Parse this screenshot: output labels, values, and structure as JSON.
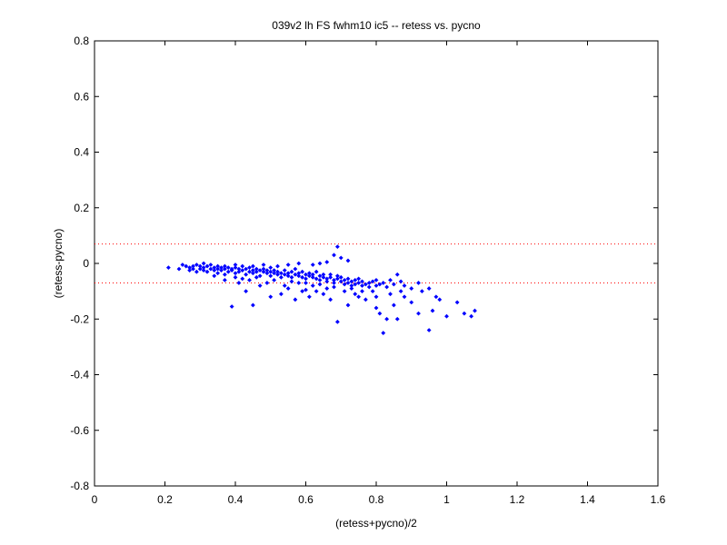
{
  "chart_data": {
    "type": "scatter",
    "title": "039v2 lh FS fwhm10 ic5 -- retess vs. pycno",
    "xlabel": "(retess+pycno)/2",
    "ylabel": "(retess-pycno)",
    "xlim": [
      0,
      1.6
    ],
    "ylim": [
      -0.8,
      0.8
    ],
    "xticks": [
      "0",
      "0.2",
      "0.4",
      "0.6",
      "0.8",
      "1",
      "1.2",
      "1.4",
      "1.6"
    ],
    "yticks": [
      "-0.8",
      "-0.6",
      "-0.4",
      "-0.2",
      "0",
      "0.2",
      "0.4",
      "0.6",
      "0.8"
    ],
    "grid": false,
    "marker_color": "#0000ff",
    "reference_line_color": "#ff0000",
    "reference_lines_y": [
      0.07,
      -0.07
    ],
    "points": [
      [
        0.21,
        -0.015
      ],
      [
        0.24,
        -0.02
      ],
      [
        0.25,
        -0.005
      ],
      [
        0.26,
        -0.01
      ],
      [
        0.27,
        -0.025
      ],
      [
        0.27,
        -0.015
      ],
      [
        0.28,
        -0.02
      ],
      [
        0.28,
        -0.01
      ],
      [
        0.29,
        -0.005
      ],
      [
        0.29,
        -0.03
      ],
      [
        0.3,
        -0.01
      ],
      [
        0.3,
        -0.02
      ],
      [
        0.31,
        -0.015
      ],
      [
        0.31,
        -0.025
      ],
      [
        0.31,
        0.0
      ],
      [
        0.32,
        -0.01
      ],
      [
        0.32,
        -0.03
      ],
      [
        0.33,
        -0.02
      ],
      [
        0.33,
        -0.005
      ],
      [
        0.34,
        -0.015
      ],
      [
        0.34,
        -0.025
      ],
      [
        0.35,
        -0.01
      ],
      [
        0.35,
        -0.02
      ],
      [
        0.35,
        -0.035
      ],
      [
        0.36,
        -0.015
      ],
      [
        0.36,
        -0.025
      ],
      [
        0.37,
        -0.02
      ],
      [
        0.37,
        -0.01
      ],
      [
        0.37,
        -0.04
      ],
      [
        0.38,
        -0.015
      ],
      [
        0.38,
        -0.03
      ],
      [
        0.39,
        -0.02
      ],
      [
        0.39,
        -0.025
      ],
      [
        0.4,
        -0.015
      ],
      [
        0.4,
        -0.035
      ],
      [
        0.4,
        -0.005
      ],
      [
        0.41,
        -0.02
      ],
      [
        0.41,
        -0.03
      ],
      [
        0.42,
        -0.025
      ],
      [
        0.42,
        -0.01
      ],
      [
        0.43,
        -0.02
      ],
      [
        0.43,
        -0.04
      ],
      [
        0.44,
        -0.03
      ],
      [
        0.44,
        -0.015
      ],
      [
        0.45,
        -0.025
      ],
      [
        0.45,
        -0.035
      ],
      [
        0.46,
        -0.02
      ],
      [
        0.46,
        -0.03
      ],
      [
        0.47,
        -0.025
      ],
      [
        0.47,
        -0.045
      ],
      [
        0.48,
        -0.03
      ],
      [
        0.48,
        -0.02
      ],
      [
        0.49,
        -0.035
      ],
      [
        0.49,
        -0.025
      ],
      [
        0.5,
        -0.03
      ],
      [
        0.5,
        -0.045
      ],
      [
        0.5,
        -0.015
      ],
      [
        0.51,
        -0.035
      ],
      [
        0.51,
        -0.025
      ],
      [
        0.52,
        -0.04
      ],
      [
        0.52,
        -0.03
      ],
      [
        0.53,
        -0.035
      ],
      [
        0.53,
        -0.05
      ],
      [
        0.54,
        -0.025
      ],
      [
        0.54,
        -0.04
      ],
      [
        0.55,
        -0.035
      ],
      [
        0.55,
        -0.045
      ],
      [
        0.56,
        -0.03
      ],
      [
        0.56,
        -0.05
      ],
      [
        0.57,
        -0.04
      ],
      [
        0.57,
        -0.02
      ],
      [
        0.58,
        -0.045
      ],
      [
        0.58,
        -0.035
      ],
      [
        0.59,
        -0.05
      ],
      [
        0.59,
        -0.03
      ],
      [
        0.6,
        -0.04
      ],
      [
        0.6,
        -0.055
      ],
      [
        0.61,
        -0.045
      ],
      [
        0.61,
        -0.035
      ],
      [
        0.62,
        -0.05
      ],
      [
        0.62,
        -0.04
      ],
      [
        0.63,
        -0.055
      ],
      [
        0.63,
        -0.03
      ],
      [
        0.64,
        -0.045
      ],
      [
        0.64,
        -0.06
      ],
      [
        0.65,
        -0.05
      ],
      [
        0.65,
        -0.04
      ],
      [
        0.66,
        -0.055
      ],
      [
        0.66,
        -0.065
      ],
      [
        0.67,
        -0.05
      ],
      [
        0.67,
        -0.04
      ],
      [
        0.68,
        -0.06
      ],
      [
        0.68,
        -0.07
      ],
      [
        0.69,
        -0.055
      ],
      [
        0.69,
        -0.045
      ],
      [
        0.7,
        -0.065
      ],
      [
        0.7,
        -0.05
      ],
      [
        0.71,
        -0.06
      ],
      [
        0.71,
        -0.075
      ],
      [
        0.72,
        -0.055
      ],
      [
        0.72,
        -0.07
      ],
      [
        0.73,
        -0.065
      ],
      [
        0.73,
        -0.08
      ],
      [
        0.74,
        -0.06
      ],
      [
        0.74,
        -0.075
      ],
      [
        0.75,
        -0.07
      ],
      [
        0.75,
        -0.055
      ],
      [
        0.76,
        -0.08
      ],
      [
        0.76,
        -0.065
      ],
      [
        0.77,
        -0.075
      ],
      [
        0.78,
        -0.07
      ],
      [
        0.78,
        -0.085
      ],
      [
        0.79,
        -0.065
      ],
      [
        0.8,
        -0.08
      ],
      [
        0.8,
        -0.06
      ],
      [
        0.81,
        -0.075
      ],
      [
        0.82,
        -0.07
      ],
      [
        0.83,
        -0.085
      ],
      [
        0.84,
        -0.06
      ],
      [
        0.85,
        -0.075
      ],
      [
        0.86,
        -0.04
      ],
      [
        0.87,
        -0.065
      ],
      [
        0.88,
        -0.08
      ],
      [
        0.9,
        -0.09
      ],
      [
        0.92,
        -0.07
      ],
      [
        0.93,
        -0.1
      ],
      [
        0.95,
        -0.09
      ],
      [
        0.97,
        -0.12
      ],
      [
        0.69,
        0.06
      ],
      [
        0.68,
        0.03
      ],
      [
        0.7,
        0.02
      ],
      [
        0.72,
        0.01
      ],
      [
        0.66,
        0.005
      ],
      [
        0.64,
        0.0
      ],
      [
        0.62,
        -0.005
      ],
      [
        0.58,
        0.0
      ],
      [
        0.55,
        -0.005
      ],
      [
        0.52,
        -0.01
      ],
      [
        0.48,
        -0.005
      ],
      [
        0.45,
        -0.01
      ],
      [
        0.39,
        -0.155
      ],
      [
        0.45,
        -0.15
      ],
      [
        0.5,
        -0.12
      ],
      [
        0.53,
        -0.11
      ],
      [
        0.57,
        -0.13
      ],
      [
        0.6,
        -0.095
      ],
      [
        0.63,
        -0.1
      ],
      [
        0.67,
        -0.13
      ],
      [
        0.69,
        -0.21
      ],
      [
        0.72,
        -0.15
      ],
      [
        0.75,
        -0.12
      ],
      [
        0.77,
        -0.13
      ],
      [
        0.8,
        -0.16
      ],
      [
        0.81,
        -0.18
      ],
      [
        0.82,
        -0.25
      ],
      [
        0.83,
        -0.2
      ],
      [
        0.85,
        -0.15
      ],
      [
        0.86,
        -0.2
      ],
      [
        0.88,
        -0.12
      ],
      [
        0.9,
        -0.14
      ],
      [
        0.92,
        -0.18
      ],
      [
        0.95,
        -0.24
      ],
      [
        0.96,
        -0.17
      ],
      [
        0.98,
        -0.13
      ],
      [
        1.0,
        -0.19
      ],
      [
        1.03,
        -0.14
      ],
      [
        1.05,
        -0.18
      ],
      [
        1.07,
        -0.19
      ],
      [
        1.08,
        -0.17
      ],
      [
        0.43,
        -0.1
      ],
      [
        0.47,
        -0.08
      ],
      [
        0.55,
        -0.09
      ],
      [
        0.59,
        -0.1
      ],
      [
        0.61,
        -0.12
      ],
      [
        0.65,
        -0.11
      ],
      [
        0.71,
        -0.1
      ],
      [
        0.74,
        -0.11
      ],
      [
        0.79,
        -0.1
      ],
      [
        0.84,
        -0.11
      ],
      [
        0.87,
        -0.1
      ],
      [
        0.41,
        -0.07
      ],
      [
        0.44,
        -0.06
      ],
      [
        0.49,
        -0.07
      ],
      [
        0.54,
        -0.08
      ],
      [
        0.58,
        -0.07
      ],
      [
        0.62,
        -0.08
      ],
      [
        0.66,
        -0.09
      ],
      [
        0.73,
        -0.09
      ],
      [
        0.76,
        -0.1
      ],
      [
        0.8,
        -0.12
      ],
      [
        0.34,
        -0.045
      ],
      [
        0.37,
        -0.06
      ],
      [
        0.4,
        -0.05
      ],
      [
        0.42,
        -0.055
      ],
      [
        0.46,
        -0.05
      ],
      [
        0.51,
        -0.06
      ],
      [
        0.56,
        -0.065
      ],
      [
        0.6,
        -0.07
      ],
      [
        0.64,
        -0.075
      ],
      [
        0.68,
        -0.085
      ]
    ]
  }
}
